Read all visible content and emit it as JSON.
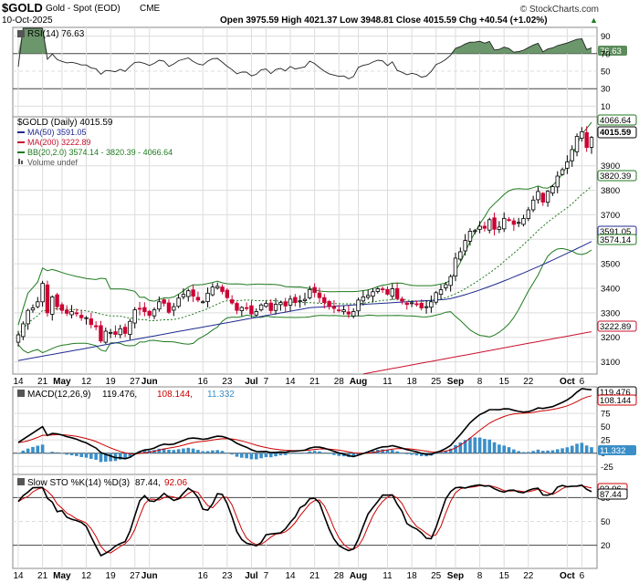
{
  "header": {
    "symbol": "$GOLD",
    "name": "Gold - Spot (EOD)",
    "exchange": "CME",
    "date": "10-Oct-2025",
    "ohlc_text": "Open 3975.59  High 4021.37  Low 3948.81  Close 4015.59  Chg +40.54 (+1.02%)",
    "up_arrow": "▲",
    "brand": "© StockCharts.com"
  },
  "colors": {
    "bg": "#ffffff",
    "grid": "#dcdcdc",
    "up": "#000000",
    "down": "#cc0033",
    "ma50": "#1f2a8f",
    "ma200": "#c8102e",
    "bb": "#1e7a1e",
    "bb_mid": "#1e7a1e",
    "macd": "#000000",
    "signal": "#cc0000",
    "hist": "#3a8fc8",
    "rsi_fill": "#5c8c5c",
    "stoK": "#000000",
    "stoD": "#cc0000"
  },
  "x_axis_labels": [
    {
      "label": "14",
      "i": 0
    },
    {
      "label": "21",
      "i": 5
    },
    {
      "label": "May",
      "i": 9,
      "bold": true
    },
    {
      "label": "12",
      "i": 14
    },
    {
      "label": "19",
      "i": 19
    },
    {
      "label": "27",
      "i": 24
    },
    {
      "label": "Jun",
      "i": 27,
      "bold": true
    },
    {
      "label": "16",
      "i": 38
    },
    {
      "label": "23",
      "i": 43
    },
    {
      "label": "Jul",
      "i": 48,
      "bold": true
    },
    {
      "label": "7",
      "i": 51
    },
    {
      "label": "14",
      "i": 56
    },
    {
      "label": "21",
      "i": 61
    },
    {
      "label": "28",
      "i": 66
    },
    {
      "label": "Aug",
      "i": 70,
      "bold": true
    },
    {
      "label": "11",
      "i": 76
    },
    {
      "label": "18",
      "i": 81
    },
    {
      "label": "25",
      "i": 86
    },
    {
      "label": "Sep",
      "i": 90,
      "bold": true
    },
    {
      "label": "8",
      "i": 95
    },
    {
      "label": "15",
      "i": 100
    },
    {
      "label": "22",
      "i": 105
    },
    {
      "label": "Oct",
      "i": 113,
      "bold": true
    },
    {
      "label": "6",
      "i": 116
    }
  ],
  "rsi_panel": {
    "legend": "RSI(14) 76.63",
    "ticks": [
      "90",
      "70",
      "50",
      "30",
      "10"
    ],
    "value_label": "76.63"
  },
  "price_panel": {
    "legend_main": "$GOLD (Daily) 4015.59",
    "legend_ma50": "MA(50) 3591.05",
    "legend_ma200": "MA(200) 3222.89",
    "legend_bb": "BB(20,2.0) 3574.14 - 3820.39 - 4066.64",
    "legend_vol": "Volume undef",
    "ticks": [
      "3900",
      "3800",
      "3700",
      "3600",
      "3500",
      "3400",
      "3300",
      "3200",
      "3100"
    ],
    "labels": [
      "4066.64",
      "4015.59",
      "3820.39",
      "3591.05",
      "3574.14",
      "3222.89"
    ]
  },
  "macd_panel": {
    "legend_prefix": "MACD(12,26,9)",
    "legend_macd": "119.476,",
    "legend_signal": "108.144,",
    "legend_hist": "11.332",
    "ticks": [
      "75",
      "50",
      "25",
      "0",
      "-25"
    ],
    "labels": [
      "119.476",
      "108.144",
      "11.332"
    ]
  },
  "sto_panel": {
    "legend_prefix": "Slow STO %K(14) %D(3)",
    "legend_k": "87.44,",
    "legend_d": "92.06",
    "ticks": [
      "80",
      "50",
      "20"
    ],
    "labels": [
      "92.06",
      "87.44"
    ]
  },
  "chart_data": {
    "type": "candlestick",
    "title": "$GOLD Gold - Spot (EOD) CME",
    "date_range": [
      "2025-04-14",
      "2025-10-10"
    ],
    "last_bar": {
      "date": "10-Oct-2025",
      "open": 3975.59,
      "high": 4021.37,
      "low": 3948.81,
      "close": 4015.59,
      "change": 40.54,
      "change_pct": 1.02
    },
    "ylim": [
      3050,
      4100
    ],
    "series": [
      {
        "name": "$GOLD (Daily)",
        "close": [
          3210,
          3255,
          3310,
          3320,
          3345,
          3420,
          3300,
          3365,
          3325,
          3310,
          3298,
          3305,
          3296,
          3280,
          3280,
          3252,
          3243,
          3185,
          3225,
          3220,
          3212,
          3235,
          3216,
          3265,
          3312,
          3315,
          3305,
          3290,
          3312,
          3345,
          3339,
          3302,
          3325,
          3360,
          3375,
          3390,
          3368,
          3352,
          3345,
          3380,
          3405,
          3408,
          3387,
          3362,
          3340,
          3310,
          3322,
          3321,
          3295,
          3305,
          3332,
          3338,
          3309,
          3335,
          3342,
          3328,
          3356,
          3342,
          3349,
          3355,
          3395,
          3383,
          3362,
          3342,
          3326,
          3318,
          3310,
          3312,
          3295,
          3305,
          3352,
          3365,
          3371,
          3386,
          3398,
          3395,
          3376,
          3398,
          3358,
          3348,
          3334,
          3341,
          3335,
          3320,
          3325,
          3345,
          3382,
          3394,
          3415,
          3448,
          3523,
          3549,
          3595,
          3633,
          3635,
          3653,
          3645,
          3680,
          3641,
          3650,
          3685,
          3678,
          3661,
          3669,
          3685,
          3720,
          3760,
          3795,
          3752,
          3796,
          3815,
          3858,
          3884,
          3916,
          3966,
          4020,
          4039,
          3975,
          4015.59
        ]
      },
      {
        "name": "MA(50)",
        "last": 3591.05
      },
      {
        "name": "MA(200)",
        "last": 3222.89
      },
      {
        "name": "BB(20,2.0)",
        "lower": 3574.14,
        "middle": 3820.39,
        "upper": 4066.64
      },
      {
        "name": "RSI(14)",
        "last": 76.63
      },
      {
        "name": "MACD(12,26,9)",
        "macd": 119.476,
        "signal": 108.144,
        "histogram": 11.332
      },
      {
        "name": "Slow STO %K(14) %D(3)",
        "k": 87.44,
        "d": 92.06
      }
    ]
  }
}
